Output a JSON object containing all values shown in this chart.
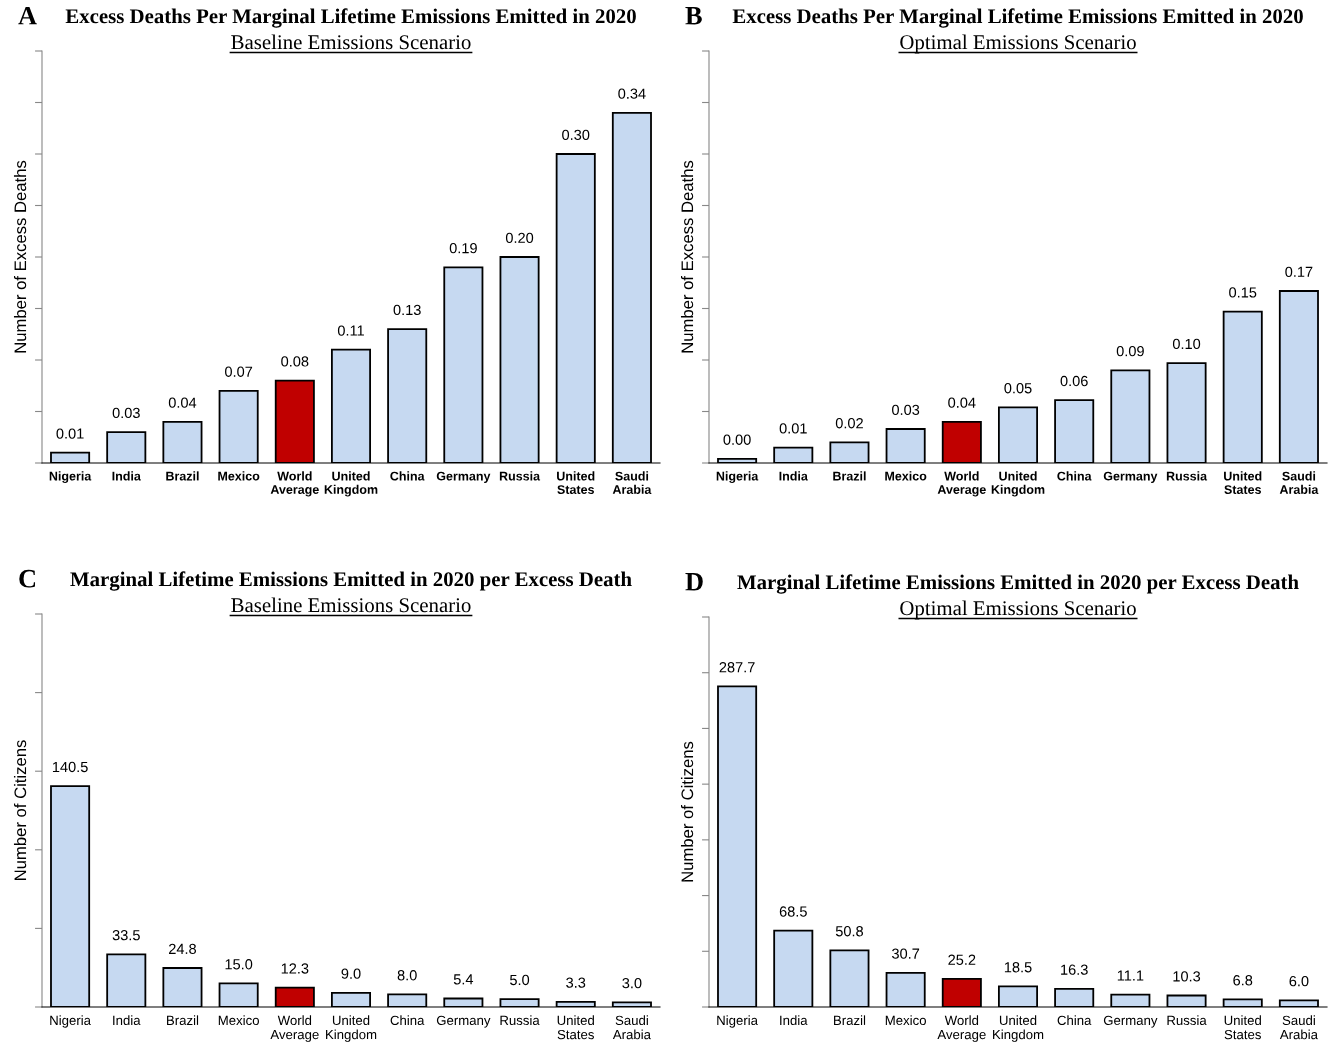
{
  "chart_data": [
    {
      "type": "bar",
      "title": "Excess Deaths Per Marginal Lifetime Emissions Emitted in 2020",
      "subtitle": "Baseline Emissions Scenario",
      "ylabel": "Number of Excess Deaths",
      "annotations": [
        "A"
      ],
      "categories": [
        "Nigeria",
        "India",
        "Brazil",
        "Mexico",
        "World\nAverage",
        "United\nKingdom",
        "China",
        "Germany",
        "Russia",
        "United\nStates",
        "Saudi\nArabia"
      ],
      "values": [
        0.01,
        0.03,
        0.04,
        0.07,
        0.08,
        0.11,
        0.13,
        0.19,
        0.2,
        0.3,
        0.34
      ],
      "value_labels": [
        "0.01",
        "0.03",
        "0.04",
        "0.07",
        "0.08",
        "0.11",
        "0.13",
        "0.19",
        "0.20",
        "0.30",
        "0.34"
      ],
      "colors": [
        "#c6d9f1",
        "#c6d9f1",
        "#c6d9f1",
        "#c6d9f1",
        "#c00000",
        "#c6d9f1",
        "#c6d9f1",
        "#c6d9f1",
        "#c6d9f1",
        "#c6d9f1",
        "#c6d9f1"
      ],
      "ylim": [
        0,
        0.4
      ],
      "yticks": [
        {
          "value": 0,
          "label": null
        },
        {
          "value": 0.05,
          "label": null
        },
        {
          "value": 0.1,
          "label": null
        },
        {
          "value": 0.15,
          "label": null
        },
        {
          "value": 0.2,
          "label": null
        },
        {
          "value": 0.25,
          "label": null
        },
        {
          "value": 0.3,
          "label": null
        },
        {
          "value": 0.35,
          "label": null
        },
        {
          "value": 0.4,
          "label": null
        }
      ],
      "tick_labels": "x",
      "grid": false,
      "legend": false
    },
    {
      "type": "bar",
      "title": "Excess Deaths Per Marginal Lifetime Emissions Emitted in 2020",
      "subtitle": "Optimal Emissions Scenario",
      "ylabel": "Number of Excess Deaths",
      "annotations": [
        "B"
      ],
      "categories": [
        "Nigeria",
        "India",
        "Brazil",
        "Mexico",
        "World\nAverage",
        "United\nKingdom",
        "China",
        "Germany",
        "Russia",
        "United\nStates",
        "Saudi\nArabia"
      ],
      "values": [
        0.004,
        0.015,
        0.02,
        0.033,
        0.04,
        0.054,
        0.061,
        0.09,
        0.097,
        0.147,
        0.167
      ],
      "value_labels": [
        "0.00",
        "0.01",
        "0.02",
        "0.03",
        "0.04",
        "0.05",
        "0.06",
        "0.09",
        "0.10",
        "0.15",
        "0.17"
      ],
      "colors": [
        "#c6d9f1",
        "#c6d9f1",
        "#c6d9f1",
        "#c6d9f1",
        "#c00000",
        "#c6d9f1",
        "#c6d9f1",
        "#c6d9f1",
        "#c6d9f1",
        "#c6d9f1",
        "#c6d9f1"
      ],
      "ylim": [
        0,
        0.4
      ],
      "yticks": [
        {
          "value": 0,
          "label": null
        },
        {
          "value": 0.05,
          "label": null
        },
        {
          "value": 0.1,
          "label": null
        },
        {
          "value": 0.15,
          "label": null
        },
        {
          "value": 0.2,
          "label": null
        },
        {
          "value": 0.25,
          "label": null
        },
        {
          "value": 0.3,
          "label": null
        },
        {
          "value": 0.35,
          "label": null
        },
        {
          "value": 0.4,
          "label": null
        }
      ],
      "tick_labels": "x",
      "grid": false,
      "legend": false
    },
    {
      "type": "bar",
      "title": "Marginal Lifetime Emissions Emitted in 2020 per Excess Death",
      "subtitle": "Baseline Emissions Scenario",
      "ylabel": "Number of Citizens",
      "annotations": [
        "C"
      ],
      "categories": [
        "Nigeria",
        "India",
        "Brazil",
        "Mexico",
        "World\nAverage",
        "United\nKingdom",
        "China",
        "Germany",
        "Russia",
        "United\nStates",
        "Saudi\nArabia"
      ],
      "values": [
        140.5,
        33.5,
        24.8,
        15.0,
        12.3,
        9.0,
        8.0,
        5.4,
        5.0,
        3.3,
        3.0
      ],
      "value_labels": [
        "140.5",
        "33.5",
        "24.8",
        "15.0",
        "12.3",
        "9.0",
        "8.0",
        "5.4",
        "5.0",
        "3.3",
        "3.0"
      ],
      "colors": [
        "#c6d9f1",
        "#c6d9f1",
        "#c6d9f1",
        "#c6d9f1",
        "#c00000",
        "#c6d9f1",
        "#c6d9f1",
        "#c6d9f1",
        "#c6d9f1",
        "#c6d9f1",
        "#c6d9f1"
      ],
      "ylim": [
        0,
        250
      ],
      "yticks": [
        {
          "value": 0,
          "label": null
        },
        {
          "value": 50,
          "label": null
        },
        {
          "value": 100,
          "label": null
        },
        {
          "value": 150,
          "label": null
        },
        {
          "value": 200,
          "label": null
        },
        {
          "value": 250,
          "label": null
        }
      ],
      "tick_labels": "x",
      "grid": false,
      "legend": false
    },
    {
      "type": "bar",
      "title": "Marginal Lifetime Emissions Emitted in 2020 per Excess Death",
      "subtitle": "Optimal Emissions Scenario",
      "ylabel": "Number of Citizens",
      "annotations": [
        "D"
      ],
      "categories": [
        "Nigeria",
        "India",
        "Brazil",
        "Mexico",
        "World\nAverage",
        "United\nKingdom",
        "China",
        "Germany",
        "Russia",
        "United\nStates",
        "Saudi\nArabia"
      ],
      "values": [
        287.7,
        68.5,
        50.8,
        30.7,
        25.2,
        18.5,
        16.3,
        11.1,
        10.3,
        6.8,
        6.0
      ],
      "value_labels": [
        "287.7",
        "68.5",
        "50.8",
        "30.7",
        "25.2",
        "18.5",
        "16.3",
        "11.1",
        "10.3",
        "6.8",
        "6.0"
      ],
      "colors": [
        "#c6d9f1",
        "#c6d9f1",
        "#c6d9f1",
        "#c6d9f1",
        "#c00000",
        "#c6d9f1",
        "#c6d9f1",
        "#c6d9f1",
        "#c6d9f1",
        "#c6d9f1",
        "#c6d9f1"
      ],
      "ylim": [
        0,
        350
      ],
      "yticks": [
        {
          "value": 0,
          "label": null
        },
        {
          "value": 50,
          "label": null
        },
        {
          "value": 100,
          "label": null
        },
        {
          "value": 150,
          "label": null
        },
        {
          "value": 200,
          "label": null
        },
        {
          "value": 250,
          "label": null
        },
        {
          "value": 300,
          "label": null
        },
        {
          "value": 350,
          "label": null
        }
      ],
      "tick_labels": "x",
      "grid": false,
      "legend": false
    }
  ]
}
